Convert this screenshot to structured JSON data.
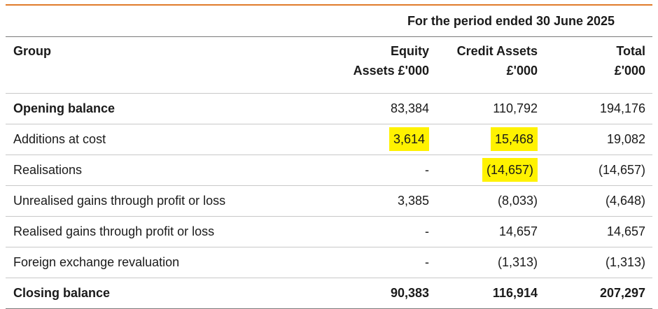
{
  "header": {
    "period_title": "For the period ended 30 June 2025"
  },
  "columns": {
    "group": "Group",
    "equity_line1": "Equity",
    "equity_line2": "Assets £'000",
    "credit_line1": "Credit Assets",
    "credit_line2": "£'000",
    "total_line1": "Total",
    "total_line2": "£'000"
  },
  "rows": [
    {
      "label": "Opening balance",
      "equity": "83,384",
      "credit": "110,792",
      "total": "194,176"
    },
    {
      "label": "Additions at cost",
      "equity": "3,614",
      "credit": "15,468",
      "total": "19,082"
    },
    {
      "label": "Realisations",
      "equity": "-",
      "credit": "(14,657)",
      "total": "(14,657)"
    },
    {
      "label": "Unrealised gains through profit or loss",
      "equity": "3,385",
      "credit": "(8,033)",
      "total": "(4,648)"
    },
    {
      "label": "Realised gains through profit or loss",
      "equity": "-",
      "credit": "14,657",
      "total": "14,657"
    },
    {
      "label": "Foreign exchange revaluation",
      "equity": "-",
      "credit": "(1,313)",
      "total": "(1,313)"
    },
    {
      "label": "Closing balance",
      "equity": "90,383",
      "credit": "116,914",
      "total": "207,297"
    }
  ],
  "colors": {
    "top_rule": "#e07b2a",
    "highlight": "#fff200"
  }
}
